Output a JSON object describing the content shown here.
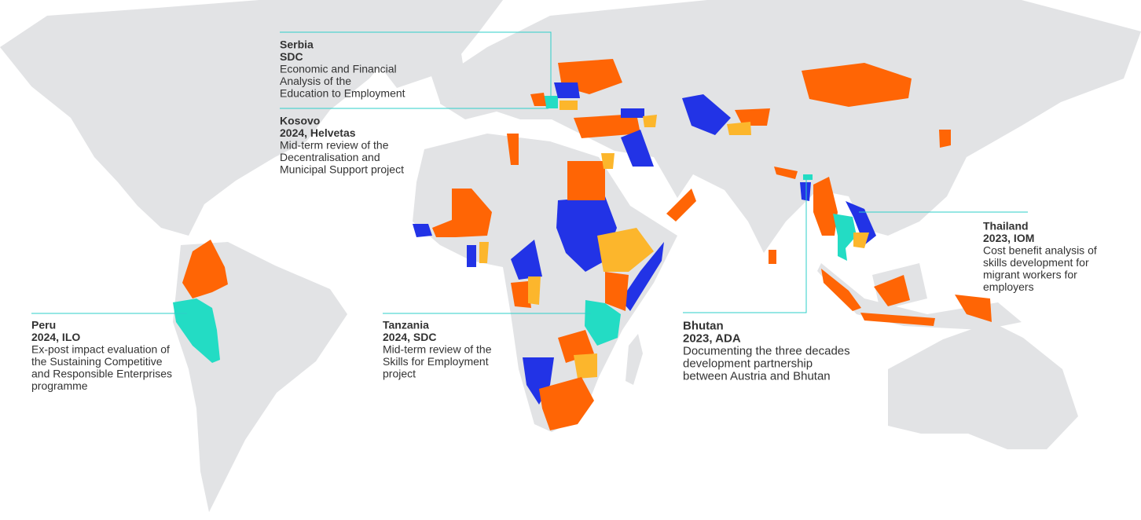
{
  "annotations": [
    {
      "country": "Serbia",
      "meta": "SDC",
      "lines": [
        "Economic and Financial",
        "Analysis of the",
        "Education to Employment"
      ]
    },
    {
      "country": "Kosovo",
      "meta": "2024, Helvetas",
      "lines": [
        "Mid-term review of the",
        "Decentralisation and",
        "Municipal Support project"
      ]
    },
    {
      "country": "Peru",
      "meta": "2024, ILO",
      "lines": [
        "Ex-post impact evaluation of",
        "the Sustaining Competitive",
        "and Responsible Enterprises",
        "programme"
      ]
    },
    {
      "country": "Tanzania",
      "meta": "2024, SDC",
      "lines": [
        "Mid-term review of the",
        "Skills for Employment",
        "project"
      ]
    },
    {
      "country": "Bhutan",
      "meta": "2023, ADA",
      "lines": [
        "Documenting the three decades",
        "development partnership",
        "between Austria and Bhutan"
      ]
    },
    {
      "country": "Thailand",
      "meta": "2023, IOM",
      "lines": [
        "Cost benefit analysis of",
        "skills development for",
        "migrant workers for",
        "employers"
      ]
    }
  ]
}
